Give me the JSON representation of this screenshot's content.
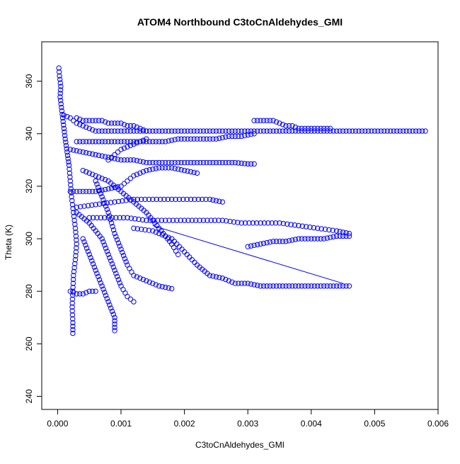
{
  "chart_data": {
    "type": "scatter",
    "title": "ATOM4 Northbound C3toCnAldehydes_GMI",
    "xlabel": "C3toCnAldehydes_GMI",
    "ylabel": "Theta (K)",
    "xlim": [
      -0.00025,
      0.006
    ],
    "ylim": [
      235,
      375
    ],
    "x_ticks": [
      0,
      0.001,
      0.002,
      0.003,
      0.004,
      0.005,
      0.006
    ],
    "x_tick_labels": [
      "0.000",
      "0.001",
      "0.002",
      "0.003",
      "0.004",
      "0.005",
      "0.006"
    ],
    "y_ticks": [
      240,
      260,
      280,
      300,
      320,
      340,
      360
    ],
    "y_tick_labels": [
      "240",
      "260",
      "280",
      "300",
      "320",
      "340",
      "360"
    ],
    "marker": "open-circle",
    "grid": false,
    "legend": "none",
    "series_color": "#0000ff",
    "series": [
      {
        "points": [
          [
            2e-05,
            365
          ],
          [
            3e-05,
            362
          ],
          [
            5e-05,
            358
          ],
          [
            4e-05,
            354
          ],
          [
            6e-05,
            350
          ],
          [
            8e-05,
            346
          ],
          [
            0.0001,
            342
          ],
          [
            0.00012,
            338
          ],
          [
            0.00015,
            333
          ],
          [
            0.00018,
            328
          ],
          [
            0.0002,
            322
          ],
          [
            0.00022,
            316
          ],
          [
            0.00025,
            310
          ],
          [
            0.00028,
            304
          ],
          [
            0.0003,
            298
          ],
          [
            0.00028,
            292
          ],
          [
            0.00025,
            286
          ],
          [
            0.00024,
            280
          ],
          [
            0.00023,
            274
          ],
          [
            0.00024,
            268
          ],
          [
            0.00024,
            264
          ]
        ]
      },
      {
        "points": [
          [
            0.0001,
            347
          ],
          [
            0.0002,
            346
          ],
          [
            0.0003,
            344
          ],
          [
            0.0004,
            343
          ],
          [
            0.0005,
            342
          ],
          [
            0.0006,
            341
          ],
          [
            0.0008,
            341
          ],
          [
            0.001,
            341
          ],
          [
            0.0012,
            341
          ],
          [
            0.0014,
            341
          ],
          [
            0.0016,
            341
          ],
          [
            0.0018,
            341
          ],
          [
            0.002,
            341
          ],
          [
            0.0022,
            341
          ],
          [
            0.0024,
            341
          ],
          [
            0.0026,
            341
          ],
          [
            0.0028,
            341
          ],
          [
            0.003,
            341
          ],
          [
            0.0032,
            341
          ],
          [
            0.0034,
            341
          ],
          [
            0.0036,
            341
          ],
          [
            0.0038,
            341
          ],
          [
            0.004,
            341
          ],
          [
            0.0042,
            341
          ],
          [
            0.0044,
            341
          ],
          [
            0.0046,
            341
          ],
          [
            0.0048,
            341
          ],
          [
            0.005,
            341
          ],
          [
            0.0052,
            341
          ],
          [
            0.0054,
            341
          ],
          [
            0.0056,
            341
          ],
          [
            0.0058,
            341
          ]
        ]
      },
      {
        "points": [
          [
            0.0003,
            346
          ],
          [
            0.0004,
            345
          ],
          [
            0.0005,
            345
          ],
          [
            0.0006,
            345
          ],
          [
            0.0007,
            345
          ],
          [
            0.0008,
            344
          ],
          [
            0.0009,
            344
          ],
          [
            0.001,
            344
          ],
          [
            0.0011,
            343
          ],
          [
            0.0012,
            343
          ],
          [
            0.0013,
            342
          ],
          [
            0.0014,
            341
          ]
        ]
      },
      {
        "points": [
          [
            0.0003,
            337
          ],
          [
            0.0005,
            337
          ],
          [
            0.0007,
            337
          ],
          [
            0.0009,
            337
          ],
          [
            0.0011,
            337
          ],
          [
            0.0013,
            337
          ],
          [
            0.0015,
            337
          ],
          [
            0.0017,
            337
          ],
          [
            0.0019,
            338
          ],
          [
            0.0021,
            338
          ],
          [
            0.0023,
            338
          ],
          [
            0.0025,
            338
          ],
          [
            0.0027,
            339
          ],
          [
            0.0029,
            339
          ],
          [
            0.0031,
            340
          ]
        ]
      },
      {
        "points": [
          [
            0.0031,
            345
          ],
          [
            0.0032,
            345
          ],
          [
            0.0033,
            345
          ],
          [
            0.0034,
            345
          ],
          [
            0.0035,
            344
          ],
          [
            0.0036,
            343
          ],
          [
            0.0037,
            343
          ],
          [
            0.0038,
            342
          ],
          [
            0.0039,
            342
          ],
          [
            0.004,
            342
          ],
          [
            0.0041,
            342
          ],
          [
            0.0042,
            342
          ],
          [
            0.0043,
            342
          ]
        ]
      },
      {
        "points": [
          [
            0.0002,
            334
          ],
          [
            0.0004,
            333
          ],
          [
            0.0006,
            332
          ],
          [
            0.0008,
            331
          ],
          [
            0.001,
            330
          ],
          [
            0.0012,
            330
          ],
          [
            0.0014,
            329
          ],
          [
            0.0016,
            329
          ],
          [
            0.0018,
            329
          ],
          [
            0.002,
            329
          ],
          [
            0.0022,
            329
          ],
          [
            0.0024,
            329
          ],
          [
            0.0026,
            329
          ],
          [
            0.0028,
            329
          ],
          [
            0.003,
            328.5
          ],
          [
            0.0031,
            328.5
          ]
        ]
      },
      {
        "points": [
          [
            0.0002,
            318
          ],
          [
            0.0004,
            318
          ],
          [
            0.0006,
            318
          ],
          [
            0.0008,
            319
          ],
          [
            0.001,
            320
          ],
          [
            0.0011,
            322
          ],
          [
            0.0012,
            324
          ],
          [
            0.0014,
            326
          ],
          [
            0.0016,
            327
          ],
          [
            0.0018,
            327
          ],
          [
            0.002,
            326
          ],
          [
            0.0022,
            325
          ]
        ]
      },
      {
        "points": [
          [
            0.0003,
            312
          ],
          [
            0.0006,
            313
          ],
          [
            0.0009,
            314
          ],
          [
            0.0012,
            315
          ],
          [
            0.0015,
            315
          ],
          [
            0.0018,
            315
          ],
          [
            0.0021,
            315
          ],
          [
            0.0024,
            315
          ],
          [
            0.0026,
            314
          ]
        ]
      },
      {
        "points": [
          [
            0.0005,
            308
          ],
          [
            0.0008,
            308
          ],
          [
            0.0011,
            308
          ],
          [
            0.0014,
            307
          ],
          [
            0.0017,
            307
          ],
          [
            0.002,
            307
          ],
          [
            0.0023,
            307
          ],
          [
            0.0026,
            307
          ],
          [
            0.0029,
            306
          ],
          [
            0.0032,
            306
          ],
          [
            0.0035,
            306
          ],
          [
            0.0038,
            305
          ],
          [
            0.0041,
            304
          ],
          [
            0.0044,
            303
          ],
          [
            0.0046,
            302
          ]
        ]
      },
      {
        "points": [
          [
            0.003,
            297
          ],
          [
            0.0032,
            298
          ],
          [
            0.0034,
            299
          ],
          [
            0.0036,
            299
          ],
          [
            0.0038,
            300
          ],
          [
            0.004,
            300
          ],
          [
            0.0042,
            300
          ],
          [
            0.0044,
            301
          ],
          [
            0.0046,
            301
          ]
        ]
      },
      {
        "points": [
          [
            0.0012,
            304
          ],
          [
            0.0015,
            303
          ],
          [
            0.0018,
            300
          ],
          [
            0.002,
            295
          ],
          [
            0.0022,
            290
          ],
          [
            0.0024,
            286
          ],
          [
            0.0026,
            285
          ],
          [
            0.0028,
            283
          ],
          [
            0.003,
            283
          ],
          [
            0.0032,
            282
          ],
          [
            0.0034,
            282
          ],
          [
            0.0036,
            282
          ],
          [
            0.0038,
            282
          ],
          [
            0.004,
            282
          ],
          [
            0.0042,
            282
          ],
          [
            0.0044,
            282
          ],
          [
            0.0046,
            282
          ]
        ]
      },
      {
        "points": [
          [
            0.0003,
            310
          ],
          [
            0.0005,
            306
          ],
          [
            0.0007,
            300
          ],
          [
            0.0008,
            294
          ],
          [
            0.0009,
            288
          ],
          [
            0.001,
            282
          ],
          [
            0.0011,
            278
          ],
          [
            0.0012,
            276
          ]
        ]
      },
      {
        "points": [
          [
            0.0006,
            322
          ],
          [
            0.0007,
            316
          ],
          [
            0.0008,
            310
          ],
          [
            0.0009,
            302
          ],
          [
            0.001,
            296
          ],
          [
            0.0011,
            290
          ],
          [
            0.0012,
            286
          ],
          [
            0.0014,
            284
          ],
          [
            0.0016,
            282
          ],
          [
            0.0018,
            281
          ]
        ]
      },
      {
        "points": [
          [
            0.0004,
            300
          ],
          [
            0.0005,
            294
          ],
          [
            0.0006,
            288
          ],
          [
            0.0007,
            282
          ],
          [
            0.0008,
            276
          ],
          [
            0.0009,
            270
          ],
          [
            0.0009,
            265
          ]
        ]
      },
      {
        "points": [
          [
            0.0002,
            280
          ],
          [
            0.0003,
            279
          ],
          [
            0.0004,
            279
          ],
          [
            0.0005,
            280
          ],
          [
            0.0006,
            280
          ]
        ]
      },
      {
        "points": [
          [
            0.0008,
            330
          ],
          [
            0.0009,
            332
          ],
          [
            0.001,
            334
          ],
          [
            0.0011,
            335
          ],
          [
            0.0012,
            336
          ],
          [
            0.0013,
            337
          ],
          [
            0.0014,
            338
          ]
        ]
      },
      {
        "points": [
          [
            0.0004,
            326
          ],
          [
            0.0006,
            324
          ],
          [
            0.0008,
            322
          ],
          [
            0.001,
            318
          ],
          [
            0.0012,
            314
          ],
          [
            0.0014,
            310
          ],
          [
            0.0016,
            304
          ],
          [
            0.0018,
            298
          ],
          [
            0.0019,
            294
          ]
        ]
      }
    ],
    "segments": [
      [
        [
          0.0015,
          305
        ],
        [
          0.0045,
          283
        ]
      ]
    ]
  }
}
